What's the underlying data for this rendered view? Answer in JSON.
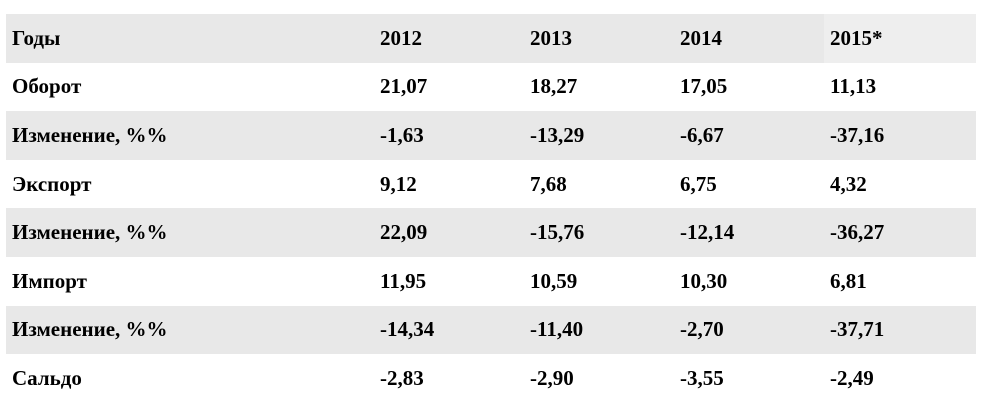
{
  "table": {
    "header": [
      "Годы",
      "2012",
      "2013",
      "2014",
      "2015*"
    ],
    "rows": [
      [
        "Оборот",
        "21,07",
        "18,27",
        "17,05",
        "11,13"
      ],
      [
        "Изменение, %%",
        "-1,63",
        "-13,29",
        "-6,67",
        "-37,16"
      ],
      [
        "Экспорт",
        "9,12",
        "7,68",
        "6,75",
        "4,32"
      ],
      [
        "Изменение, %%",
        "22,09",
        "-15,76",
        "-12,14",
        "-36,27"
      ],
      [
        "Импорт",
        "11,95",
        "10,59",
        "10,30",
        "6,81"
      ],
      [
        "Изменение, %%",
        "-14,34",
        "-11,40",
        "-2,70",
        "-37,71"
      ],
      [
        "Сальдо",
        "-2,83",
        "-2,90",
        "-3,55",
        "-2,49"
      ]
    ]
  }
}
